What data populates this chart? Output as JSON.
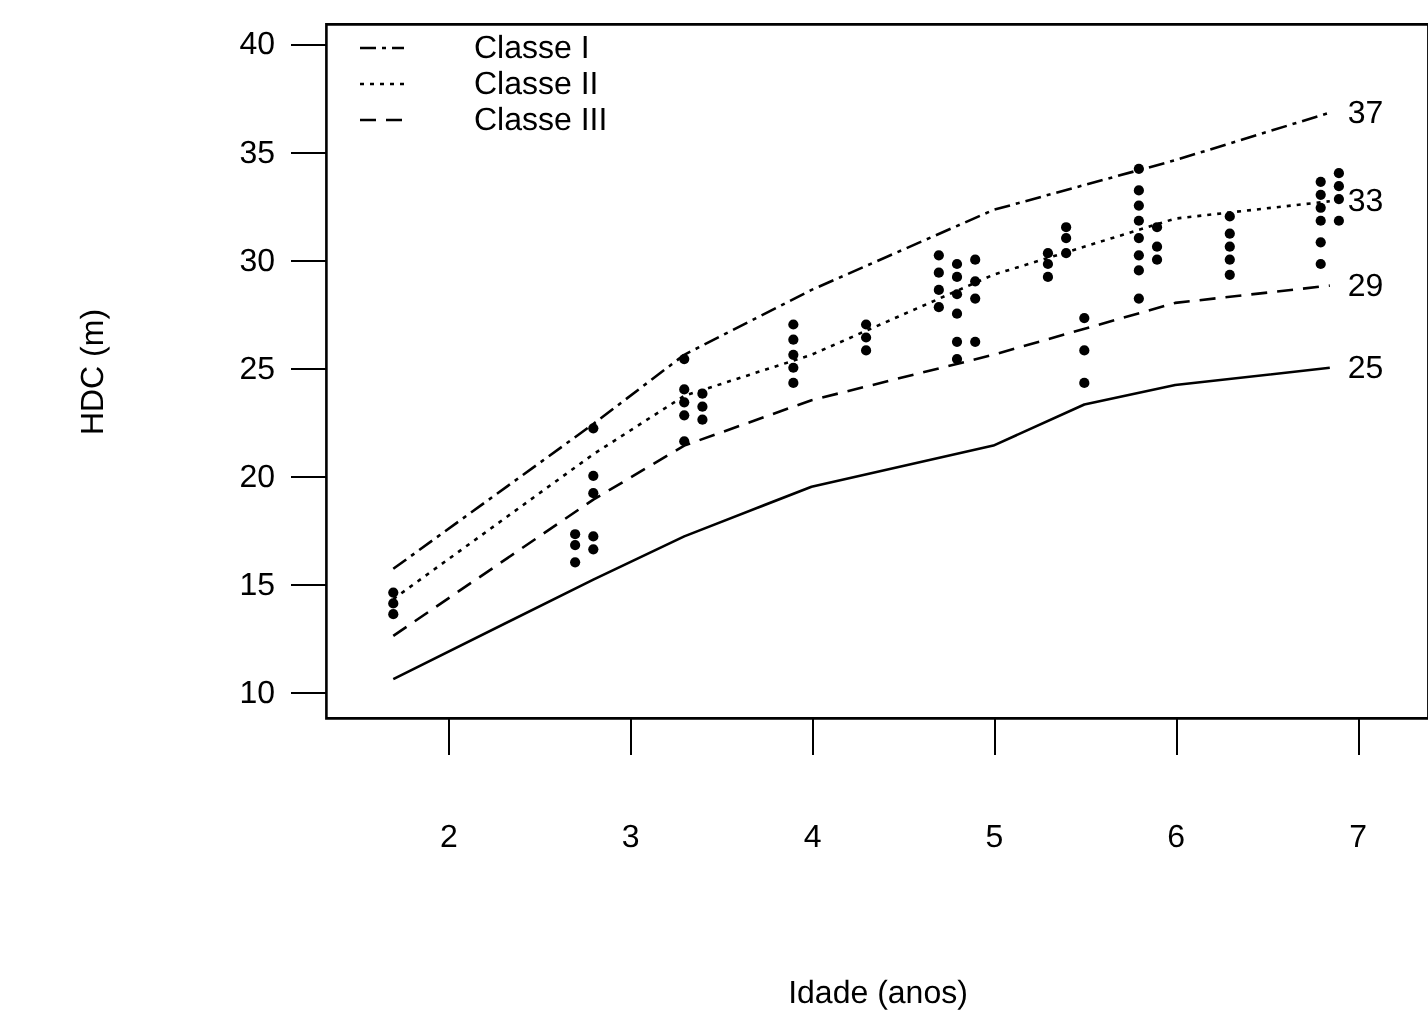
{
  "chart_data": {
    "type": "line",
    "xlabel": "Idade (anos)",
    "ylabel": "HDC (m)",
    "xlim": [
      1.33,
      7.39
    ],
    "ylim": [
      8.8,
      40.9
    ],
    "xticks": [
      2,
      3,
      4,
      5,
      6,
      7
    ],
    "yticks": [
      10,
      15,
      20,
      25,
      30,
      35,
      40
    ],
    "grid": false,
    "legend": "top left",
    "series": [
      {
        "name": "Classe I",
        "color": "#000000",
        "line_style": "dashdot",
        "x": [
          1.7,
          2.8,
          3.3,
          4,
          5,
          6,
          6.85
        ],
        "values": [
          15.7,
          22.4,
          25.6,
          28.6,
          32.3,
          34.6,
          36.8
        ]
      },
      {
        "name": "Classe II",
        "color": "#000000",
        "line_style": "dotted",
        "x": [
          1.7,
          2.8,
          3.3,
          4,
          5,
          6,
          6.85
        ],
        "values": [
          14.3,
          21.0,
          23.7,
          25.6,
          29.3,
          31.9,
          32.7
        ]
      },
      {
        "name": "Classe III",
        "color": "#000000",
        "line_style": "dashed",
        "x": [
          1.7,
          2.8,
          3.3,
          4,
          5,
          6,
          6.85
        ],
        "values": [
          12.6,
          18.9,
          21.4,
          23.5,
          25.6,
          28.0,
          28.8
        ]
      },
      {
        "color": "#000000",
        "line_style": "solid",
        "x": [
          1.7,
          2.8,
          3.3,
          4,
          5,
          5.5,
          6,
          6.85
        ],
        "values": [
          10.6,
          15.2,
          17.2,
          19.5,
          21.4,
          23.3,
          24.2,
          25.0
        ]
      },
      {
        "type": "scatter",
        "color": "#000000",
        "marker": "circle",
        "x": [
          1.7,
          1.7,
          1.7,
          2.7,
          2.7,
          2.7,
          2.8,
          2.8,
          2.8,
          2.8,
          2.8,
          3.3,
          3.3,
          3.3,
          3.3,
          3.3,
          3.4,
          3.4,
          3.4,
          3.9,
          3.9,
          3.9,
          3.9,
          3.9,
          4.3,
          4.3,
          4.3,
          4.7,
          4.7,
          4.7,
          4.7,
          4.8,
          4.8,
          4.8,
          4.8,
          4.8,
          4.8,
          4.9,
          4.9,
          4.9,
          4.9,
          5.3,
          5.3,
          5.3,
          5.4,
          5.4,
          5.4,
          5.5,
          5.5,
          5.5,
          5.8,
          5.8,
          5.8,
          5.8,
          5.8,
          5.8,
          5.8,
          5.8,
          5.9,
          5.9,
          5.9,
          6.3,
          6.3,
          6.3,
          6.3,
          6.3,
          6.8,
          6.8,
          6.8,
          6.8,
          6.8,
          6.8,
          6.9,
          6.9,
          6.9,
          6.9
        ],
        "values": [
          13.6,
          14.1,
          14.6,
          16.0,
          16.8,
          17.3,
          16.6,
          17.2,
          19.2,
          20.0,
          22.2,
          21.6,
          22.8,
          23.4,
          24.0,
          25.4,
          22.6,
          23.2,
          23.8,
          24.3,
          25.0,
          25.6,
          26.3,
          27.0,
          25.8,
          26.4,
          27.0,
          27.8,
          28.6,
          29.4,
          30.2,
          25.4,
          26.2,
          27.5,
          28.4,
          29.2,
          29.8,
          26.2,
          28.2,
          29.0,
          30.0,
          29.2,
          29.8,
          30.3,
          30.3,
          31.0,
          31.5,
          24.3,
          25.8,
          27.3,
          28.2,
          29.5,
          30.2,
          31.0,
          31.8,
          32.5,
          33.2,
          34.2,
          30.0,
          30.6,
          31.5,
          29.3,
          30.0,
          30.6,
          31.2,
          32.0,
          29.8,
          30.8,
          31.8,
          32.4,
          33.0,
          33.6,
          31.8,
          32.8,
          33.4,
          34.0
        ]
      }
    ],
    "annotations": [
      "37",
      "33",
      "29",
      "25"
    ]
  }
}
